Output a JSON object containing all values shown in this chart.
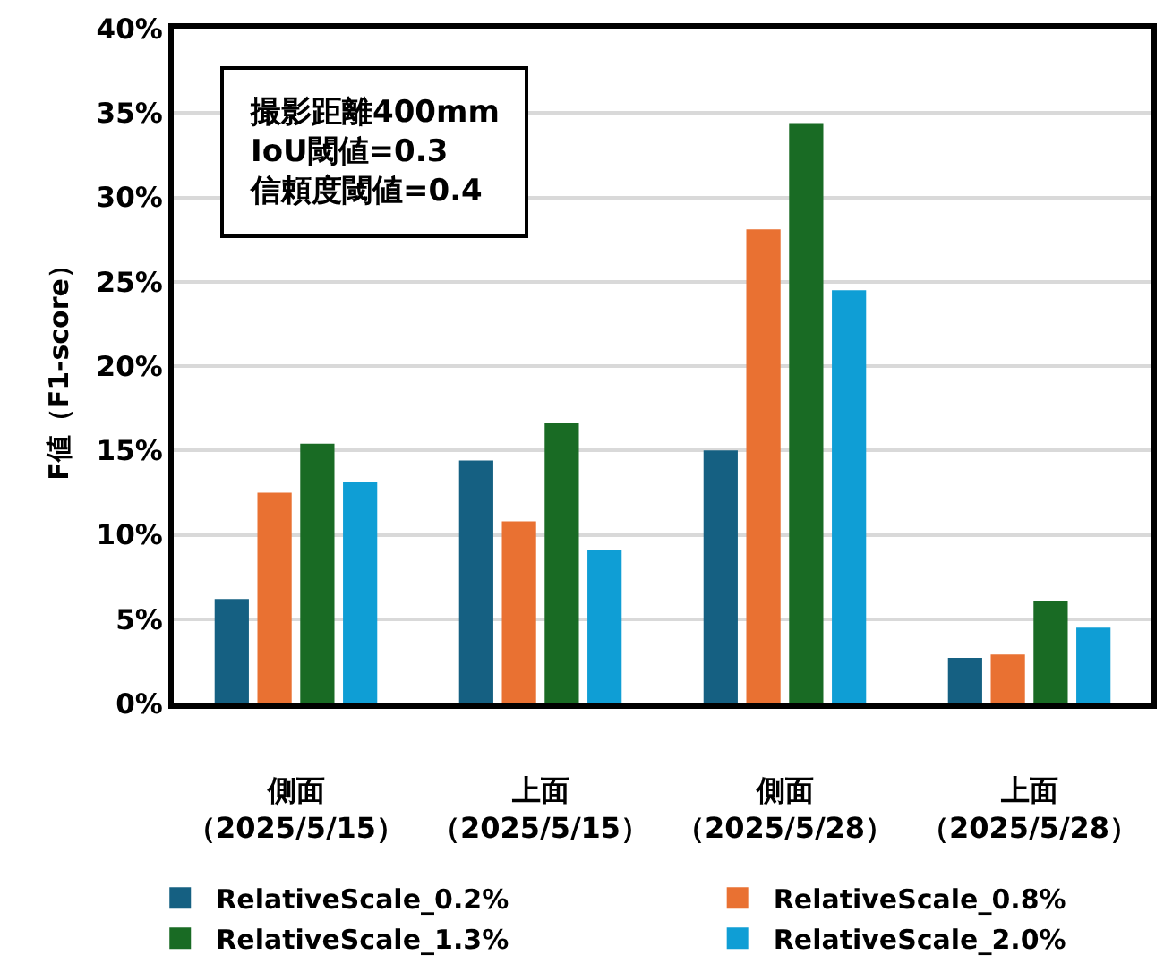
{
  "chart_data": {
    "type": "bar",
    "categories": [
      "側面（2025/5/15）",
      "上面（2025/5/15）",
      "側面（2025/5/28）",
      "上面（2025/5/28）"
    ],
    "series": [
      {
        "name": "RelativeScale_0.2%",
        "color": "#156082",
        "values": [
          6.2,
          14.4,
          15.0,
          2.7
        ]
      },
      {
        "name": "RelativeScale_0.8%",
        "color": "#e97132",
        "values": [
          12.5,
          10.8,
          28.1,
          2.9
        ]
      },
      {
        "name": "RelativeScale_1.3%",
        "color": "#196b24",
        "values": [
          15.4,
          16.6,
          34.4,
          6.1
        ]
      },
      {
        "name": "RelativeScale_2.0%",
        "color": "#0f9ed5",
        "values": [
          13.1,
          9.1,
          24.5,
          4.5
        ]
      }
    ],
    "ylabel": "F値（F1-score）",
    "annotations": [
      "撮影距離400mm\nIoU閾値=0.3\n信頼度閾値=0.4"
    ],
    "ylim": [
      0,
      40
    ],
    "yticks": [
      {
        "value": 0,
        "label": "0%"
      },
      {
        "value": 5,
        "label": "5%"
      },
      {
        "value": 10,
        "label": "10%"
      },
      {
        "value": 15,
        "label": "15%"
      },
      {
        "value": 20,
        "label": "20%"
      },
      {
        "value": 25,
        "label": "25%"
      },
      {
        "value": 30,
        "label": "30%"
      },
      {
        "value": 35,
        "label": "35%"
      },
      {
        "value": 40,
        "label": "40%"
      }
    ],
    "grid": "y",
    "legend": "bottom"
  }
}
